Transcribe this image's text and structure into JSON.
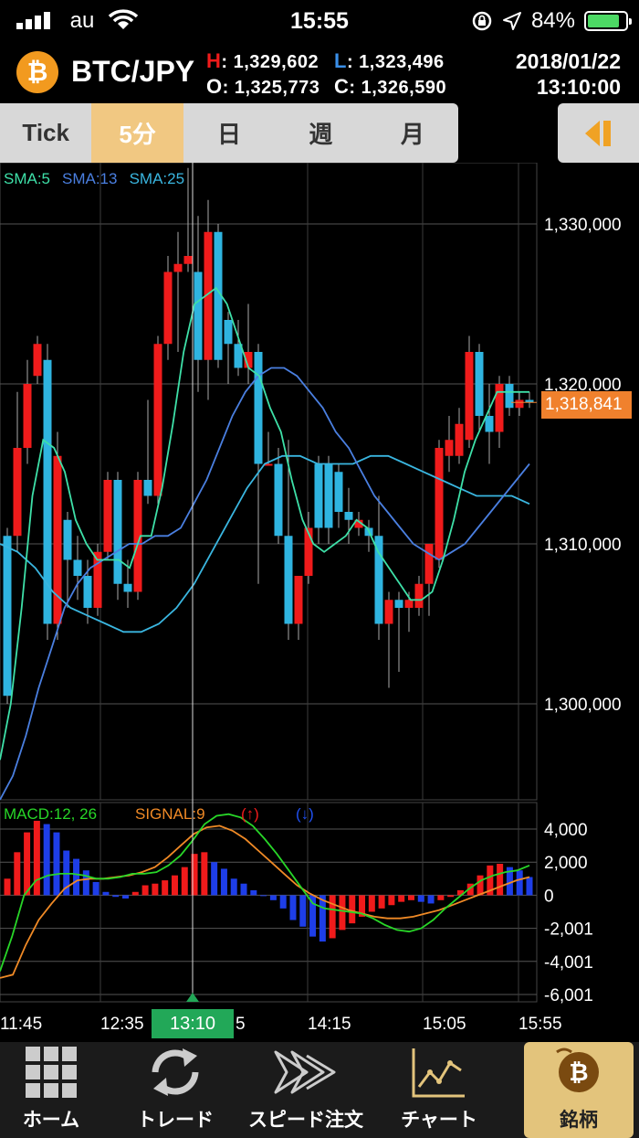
{
  "status_bar": {
    "carrier": "au",
    "time": "15:55",
    "battery": "84%",
    "battery_fraction": 0.84
  },
  "header": {
    "coin_symbol": "₿",
    "pair": "BTC/JPY",
    "high_label": "H",
    "high": ": 1,329,602",
    "low_label": "L",
    "low": ": 1,323,496",
    "open_label": "O",
    "open": ": 1,325,773",
    "close_label": "C",
    "close": ": 1,326,590",
    "date": "2018/01/22",
    "time": "13:10:00"
  },
  "tabs": [
    {
      "label": "Tick",
      "active": false
    },
    {
      "label": "5分",
      "active": true
    },
    {
      "label": "日",
      "active": false
    },
    {
      "label": "週",
      "active": false
    },
    {
      "label": "月",
      "active": false
    }
  ],
  "colors": {
    "up": "#f01b1b",
    "down": "#2fb4e0",
    "sma5": "#3ee0a8",
    "sma13": "#4a7fe0",
    "sma25": "#3ab6e0",
    "macd": "#28d628",
    "signal": "#f08a26",
    "accent": "#f0812d"
  },
  "chart_data": {
    "type": "candlestick",
    "legend": [
      {
        "name": "SMA:5",
        "color": "#3ee0a8"
      },
      {
        "name": "SMA:13",
        "color": "#4a7fe0"
      },
      {
        "name": "SMA:25",
        "color": "#3ab6e0"
      }
    ],
    "y_ticks": [
      "1,330,000",
      "1,320,000",
      "1,310,000",
      "1,300,000"
    ],
    "y_tick_values": [
      1330000,
      1320000,
      1310000,
      1300000
    ],
    "ylim": [
      1294000,
      1334000
    ],
    "current_price": "1,318,841",
    "current_price_value": 1318841,
    "x_ticks": [
      "11:45",
      "12:35",
      "13:10",
      "14:15",
      "15:05",
      "15:55"
    ],
    "highlighted_time": "13:10",
    "candles": [
      {
        "o": 1310500,
        "h": 1311000,
        "l": 1300000,
        "c": 1300500
      },
      {
        "o": 1310500,
        "h": 1319500,
        "l": 1309500,
        "c": 1316000
      },
      {
        "o": 1316000,
        "h": 1321500,
        "l": 1315000,
        "c": 1320000
      },
      {
        "o": 1320500,
        "h": 1323000,
        "l": 1320000,
        "c": 1322500
      },
      {
        "o": 1321500,
        "h": 1322500,
        "l": 1304000,
        "c": 1305000
      },
      {
        "o": 1305000,
        "h": 1317000,
        "l": 1304000,
        "c": 1315500
      },
      {
        "o": 1311500,
        "h": 1312000,
        "l": 1306000,
        "c": 1309000
      },
      {
        "o": 1309000,
        "h": 1310500,
        "l": 1306500,
        "c": 1308000
      },
      {
        "o": 1308000,
        "h": 1309000,
        "l": 1305000,
        "c": 1306000
      },
      {
        "o": 1306000,
        "h": 1310000,
        "l": 1305500,
        "c": 1309500
      },
      {
        "o": 1309500,
        "h": 1314500,
        "l": 1309000,
        "c": 1314000
      },
      {
        "o": 1314000,
        "h": 1314500,
        "l": 1306500,
        "c": 1307500
      },
      {
        "o": 1307500,
        "h": 1309000,
        "l": 1306000,
        "c": 1307000
      },
      {
        "o": 1307000,
        "h": 1314500,
        "l": 1306500,
        "c": 1314000
      },
      {
        "o": 1314000,
        "h": 1319000,
        "l": 1312500,
        "c": 1313000
      },
      {
        "o": 1313000,
        "h": 1323000,
        "l": 1312500,
        "c": 1322500
      },
      {
        "o": 1322500,
        "h": 1328000,
        "l": 1321500,
        "c": 1327000
      },
      {
        "o": 1327000,
        "h": 1329500,
        "l": 1322000,
        "c": 1327500
      },
      {
        "o": 1327500,
        "h": 1333500,
        "l": 1327000,
        "c": 1328000
      },
      {
        "o": 1327000,
        "h": 1330500,
        "l": 1319500,
        "c": 1321500
      },
      {
        "o": 1321500,
        "h": 1331500,
        "l": 1319000,
        "c": 1329500
      },
      {
        "o": 1329500,
        "h": 1330000,
        "l": 1321000,
        "c": 1321500
      },
      {
        "o": 1324000,
        "h": 1324500,
        "l": 1320000,
        "c": 1322500
      },
      {
        "o": 1322500,
        "h": 1324000,
        "l": 1320500,
        "c": 1321000
      },
      {
        "o": 1321000,
        "h": 1325000,
        "l": 1320000,
        "c": 1322000
      },
      {
        "o": 1322000,
        "h": 1322500,
        "l": 1307500,
        "c": 1315000
      },
      {
        "o": 1315000,
        "h": 1317000,
        "l": 1315000,
        "c": 1315000
      },
      {
        "o": 1315000,
        "h": 1316000,
        "l": 1310000,
        "c": 1310500
      },
      {
        "o": 1310500,
        "h": 1316500,
        "l": 1304000,
        "c": 1305000
      },
      {
        "o": 1305000,
        "h": 1308000,
        "l": 1304000,
        "c": 1308000
      },
      {
        "o": 1308000,
        "h": 1312000,
        "l": 1307500,
        "c": 1311000
      },
      {
        "o": 1315000,
        "h": 1315500,
        "l": 1310000,
        "c": 1311000
      },
      {
        "o": 1315000,
        "h": 1315500,
        "l": 1310000,
        "c": 1311000
      },
      {
        "o": 1314500,
        "h": 1315000,
        "l": 1311000,
        "c": 1312000
      },
      {
        "o": 1312000,
        "h": 1313500,
        "l": 1310000,
        "c": 1311500
      },
      {
        "o": 1311000,
        "h": 1312000,
        "l": 1310500,
        "c": 1311500
      },
      {
        "o": 1311000,
        "h": 1311500,
        "l": 1309500,
        "c": 1310500
      },
      {
        "o": 1310500,
        "h": 1313000,
        "l": 1304000,
        "c": 1305000
      },
      {
        "o": 1305000,
        "h": 1307000,
        "l": 1301000,
        "c": 1306500
      },
      {
        "o": 1306500,
        "h": 1307000,
        "l": 1302000,
        "c": 1306000
      },
      {
        "o": 1306000,
        "h": 1307000,
        "l": 1304500,
        "c": 1306500
      },
      {
        "o": 1306000,
        "h": 1308000,
        "l": 1305500,
        "c": 1307500
      },
      {
        "o": 1307500,
        "h": 1310000,
        "l": 1305500,
        "c": 1310000
      },
      {
        "o": 1309000,
        "h": 1316500,
        "l": 1308500,
        "c": 1316000
      },
      {
        "o": 1315500,
        "h": 1318000,
        "l": 1314500,
        "c": 1316500
      },
      {
        "o": 1315500,
        "h": 1318500,
        "l": 1315000,
        "c": 1317500
      },
      {
        "o": 1316500,
        "h": 1323000,
        "l": 1316000,
        "c": 1322000
      },
      {
        "o": 1322000,
        "h": 1322500,
        "l": 1317000,
        "c": 1318000
      },
      {
        "o": 1318000,
        "h": 1320000,
        "l": 1315000,
        "c": 1317000
      },
      {
        "o": 1317000,
        "h": 1320500,
        "l": 1316000,
        "c": 1320000
      },
      {
        "o": 1320000,
        "h": 1320500,
        "l": 1318000,
        "c": 1318500
      },
      {
        "o": 1318500,
        "h": 1319500,
        "l": 1318000,
        "c": 1319000
      },
      {
        "o": 1319000,
        "h": 1319500,
        "l": 1318500,
        "c": 1318841
      }
    ],
    "sma5": [
      1296500,
      1300000,
      1306000,
      1313000,
      1316500,
      1316000,
      1314500,
      1311500,
      1310000,
      1309000,
      1309000,
      1309000,
      1308500,
      1310500,
      1310500,
      1313500,
      1317500,
      1322000,
      1325000,
      1325500,
      1326000,
      1325000,
      1323000,
      1321000,
      1320500,
      1318500,
      1317000,
      1314000,
      1311500,
      1310000,
      1309500,
      1310000,
      1310500,
      1311500,
      1311000,
      1309500,
      1308500,
      1307500,
      1306500,
      1306500,
      1307000,
      1309000,
      1311500,
      1314500,
      1316500,
      1318000,
      1319500,
      1319500,
      1319500,
      1319500
    ],
    "sma13": [
      1294000,
      1295500,
      1298000,
      1301000,
      1303500,
      1306000,
      1307500,
      1308500,
      1309000,
      1309500,
      1310000,
      1310000,
      1310500,
      1310500,
      1311000,
      1312500,
      1314000,
      1316000,
      1318000,
      1319500,
      1320500,
      1321000,
      1321000,
      1320500,
      1319500,
      1318500,
      1317000,
      1316000,
      1314500,
      1313000,
      1312000,
      1311000,
      1310000,
      1309500,
      1309000,
      1309500,
      1310000,
      1311000,
      1312000,
      1313000,
      1314000,
      1315000
    ],
    "sma25": [
      1310000,
      1309500,
      1308500,
      1307000,
      1306000,
      1305500,
      1305000,
      1304500,
      1304500,
      1305000,
      1306000,
      1307500,
      1309500,
      1311500,
      1313500,
      1315000,
      1315500,
      1315500,
      1315000,
      1315000,
      1315000,
      1315500,
      1315500,
      1315000,
      1314500,
      1314000,
      1313500,
      1313000,
      1313000,
      1313000,
      1312500
    ],
    "macd_panel": {
      "legend": [
        {
          "name": "MACD:12, 26",
          "color": "#28d628"
        },
        {
          "name": "SIGNAL:9",
          "color": "#f08a26"
        },
        {
          "name": "(↑)",
          "color": "#f01b1b"
        },
        {
          "name": "(↓)",
          "color": "#2050f0"
        }
      ],
      "y_ticks": [
        "4,000",
        "2,000",
        "0",
        "-2,001",
        "-4,001",
        "-6,001"
      ],
      "y_tick_values": [
        4000,
        2000,
        0,
        -2001,
        -4001,
        -6001
      ],
      "ylim": [
        -6500,
        5000
      ],
      "histogram": [
        1000,
        2600,
        3800,
        4500,
        4300,
        3800,
        2700,
        2200,
        1500,
        800,
        200,
        -100,
        -200,
        200,
        600,
        700,
        900,
        1200,
        1700,
        2500,
        2600,
        2000,
        1600,
        1000,
        700,
        300,
        0,
        -300,
        -800,
        -1500,
        -1900,
        -2500,
        -2800,
        -2600,
        -2100,
        -1700,
        -1300,
        -1000,
        -800,
        -600,
        -400,
        -300,
        -400,
        -500,
        -300,
        -100,
        300,
        700,
        1200,
        1800,
        1900,
        1700,
        1500,
        1100
      ],
      "macd": [
        -4600,
        -2500,
        0,
        900,
        1200,
        1300,
        1300,
        1200,
        1000,
        1000,
        1100,
        1300,
        1300,
        1400,
        1800,
        2400,
        3300,
        4300,
        4800,
        4900,
        4700,
        4200,
        3400,
        2500,
        1500,
        500,
        -500,
        -800,
        -900,
        -1000,
        -1100,
        -1400,
        -1800,
        -2100,
        -2200,
        -2000,
        -1500,
        -800,
        -200,
        400,
        900,
        1200,
        1400,
        1500,
        1800
      ],
      "signal": [
        -5000,
        -4800,
        -3000,
        -1500,
        -500,
        400,
        900,
        1000,
        1000,
        1100,
        1200,
        1400,
        1700,
        2300,
        3000,
        3700,
        4100,
        4200,
        3900,
        3400,
        2700,
        2000,
        1300,
        600,
        100,
        -300,
        -600,
        -900,
        -1100,
        -1300,
        -1400,
        -1400,
        -1300,
        -1100,
        -900,
        -600,
        -300,
        0,
        300,
        600,
        900,
        1100
      ]
    }
  },
  "tab_bar": [
    {
      "label": "ホーム",
      "icon": "grid-icon",
      "active": false
    },
    {
      "label": "トレード",
      "icon": "refresh-icon",
      "active": false
    },
    {
      "label": "スピード注文",
      "icon": "speed-arrows-icon",
      "active": false
    },
    {
      "label": "チャート",
      "icon": "chart-icon",
      "active": false
    },
    {
      "label": "銘柄",
      "icon": "bitcoin-icon",
      "active": true
    }
  ]
}
